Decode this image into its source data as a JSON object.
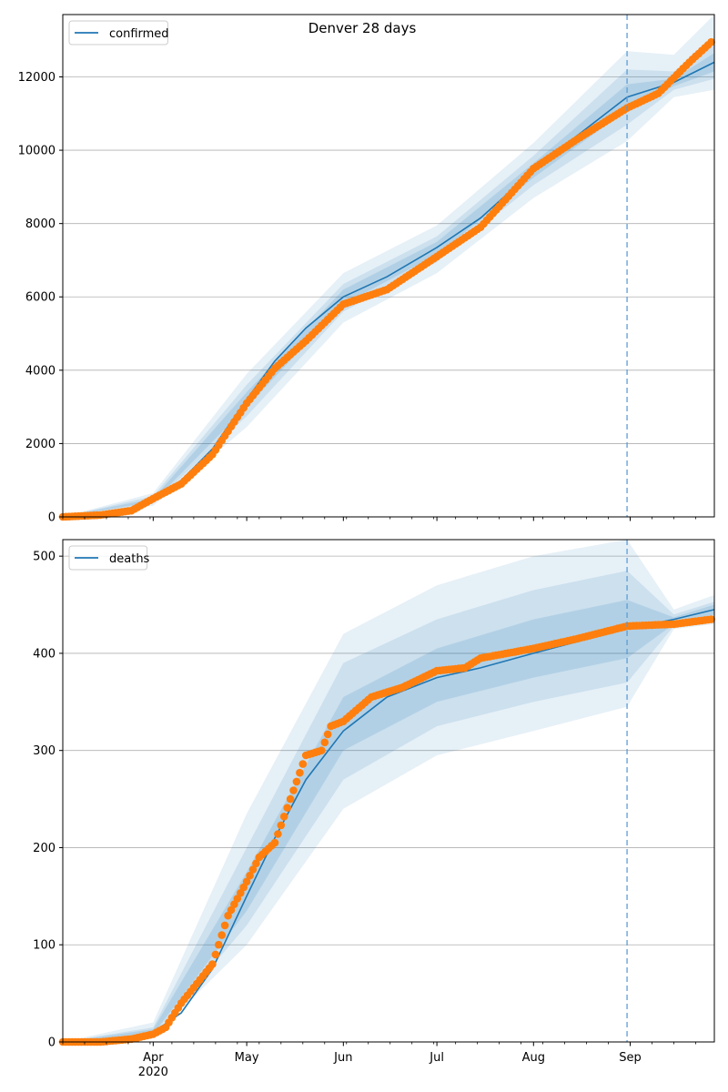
{
  "chart_data": [
    {
      "type": "line",
      "title": "Denver 28 days",
      "x_axis": {
        "start": "2020-03-03",
        "end": "2020-09-28",
        "major_ticks": [
          {
            "date": "2020-04-01",
            "label": "Apr",
            "year": "2020"
          },
          {
            "date": "2020-05-01",
            "label": "May"
          },
          {
            "date": "2020-06-01",
            "label": "Jun"
          },
          {
            "date": "2020-07-01",
            "label": "Jul"
          },
          {
            "date": "2020-08-01",
            "label": "Aug"
          },
          {
            "date": "2020-09-01",
            "label": "Sep"
          }
        ]
      },
      "ylim": [
        0,
        13700
      ],
      "yticks": [
        0,
        2000,
        4000,
        6000,
        8000,
        10000,
        12000
      ],
      "grid": "horizontal",
      "legend": {
        "entries": [
          "confirmed"
        ],
        "placement": "top-left"
      },
      "forecast_start": "2020-08-31",
      "series": [
        {
          "name": "confirmed",
          "role": "model",
          "color": "#1f77b4",
          "points": [
            [
              "2020-03-03",
              0
            ],
            [
              "2020-03-15",
              30
            ],
            [
              "2020-03-25",
              150
            ],
            [
              "2020-04-01",
              450
            ],
            [
              "2020-04-10",
              1000
            ],
            [
              "2020-04-20",
              1850
            ],
            [
              "2020-05-01",
              3200
            ],
            [
              "2020-05-10",
              4250
            ],
            [
              "2020-05-20",
              5150
            ],
            [
              "2020-06-01",
              6000
            ],
            [
              "2020-06-15",
              6550
            ],
            [
              "2020-07-01",
              7350
            ],
            [
              "2020-07-15",
              8150
            ],
            [
              "2020-08-01",
              9450
            ],
            [
              "2020-08-15",
              10400
            ],
            [
              "2020-08-31",
              11450
            ],
            [
              "2020-09-15",
              11850
            ],
            [
              "2020-09-28",
              12400
            ]
          ]
        },
        {
          "name": "confirmed",
          "role": "observed",
          "color": "#ff7f0e",
          "points": [
            [
              "2020-03-03",
              0
            ],
            [
              "2020-03-15",
              50
            ],
            [
              "2020-03-25",
              170
            ],
            [
              "2020-04-01",
              500
            ],
            [
              "2020-04-10",
              900
            ],
            [
              "2020-04-20",
              1700
            ],
            [
              "2020-05-01",
              3100
            ],
            [
              "2020-05-10",
              4050
            ],
            [
              "2020-05-20",
              4800
            ],
            [
              "2020-06-01",
              5800
            ],
            [
              "2020-06-15",
              6200
            ],
            [
              "2020-07-01",
              7100
            ],
            [
              "2020-07-15",
              7900
            ],
            [
              "2020-08-01",
              9500
            ],
            [
              "2020-08-15",
              10300
            ],
            [
              "2020-08-31",
              11150
            ],
            [
              "2020-09-10",
              11550
            ],
            [
              "2020-09-20",
              12400
            ],
            [
              "2020-09-27",
              12950
            ]
          ]
        }
      ],
      "bands": [
        {
          "opacity": 0.11,
          "lower": [
            [
              "2020-03-03",
              0
            ],
            [
              "2020-04-01",
              300
            ],
            [
              "2020-05-01",
              2450
            ],
            [
              "2020-06-01",
              5300
            ],
            [
              "2020-07-01",
              6650
            ],
            [
              "2020-08-01",
              8700
            ],
            [
              "2020-08-31",
              10250
            ],
            [
              "2020-09-15",
              11450
            ],
            [
              "2020-09-28",
              11650
            ]
          ],
          "upper": [
            [
              "2020-03-03",
              0
            ],
            [
              "2020-04-01",
              650
            ],
            [
              "2020-05-01",
              3900
            ],
            [
              "2020-06-01",
              6650
            ],
            [
              "2020-07-01",
              7950
            ],
            [
              "2020-08-01",
              10200
            ],
            [
              "2020-08-31",
              12700
            ],
            [
              "2020-09-15",
              12600
            ],
            [
              "2020-09-28",
              13700
            ]
          ]
        },
        {
          "opacity": 0.13,
          "lower": [
            [
              "2020-03-03",
              0
            ],
            [
              "2020-04-01",
              360
            ],
            [
              "2020-05-01",
              2750
            ],
            [
              "2020-06-01",
              5600
            ],
            [
              "2020-07-01",
              6950
            ],
            [
              "2020-08-01",
              9050
            ],
            [
              "2020-08-31",
              10700
            ],
            [
              "2020-09-15",
              11650
            ],
            [
              "2020-09-28",
              11950
            ]
          ],
          "upper": [
            [
              "2020-03-03",
              0
            ],
            [
              "2020-04-01",
              570
            ],
            [
              "2020-05-01",
              3600
            ],
            [
              "2020-06-01",
              6350
            ],
            [
              "2020-07-01",
              7650
            ],
            [
              "2020-08-01",
              9850
            ],
            [
              "2020-08-31",
              12200
            ],
            [
              "2020-09-15",
              12150
            ],
            [
              "2020-09-28",
              12950
            ]
          ]
        },
        {
          "opacity": 0.15,
          "lower": [
            [
              "2020-03-03",
              0
            ],
            [
              "2020-04-01",
              410
            ],
            [
              "2020-05-01",
              3000
            ],
            [
              "2020-06-01",
              5800
            ],
            [
              "2020-07-01",
              7150
            ],
            [
              "2020-08-01",
              9250
            ],
            [
              "2020-08-31",
              11100
            ],
            [
              "2020-09-15",
              11750
            ],
            [
              "2020-09-28",
              12150
            ]
          ],
          "upper": [
            [
              "2020-03-03",
              0
            ],
            [
              "2020-04-01",
              500
            ],
            [
              "2020-05-01",
              3400
            ],
            [
              "2020-06-01",
              6200
            ],
            [
              "2020-07-01",
              7500
            ],
            [
              "2020-08-01",
              9650
            ],
            [
              "2020-08-31",
              11800
            ],
            [
              "2020-09-15",
              11950
            ],
            [
              "2020-09-28",
              12650
            ]
          ]
        }
      ]
    },
    {
      "type": "line",
      "title": "",
      "x_axis": {
        "start": "2020-03-03",
        "end": "2020-09-28",
        "major_ticks": [
          {
            "date": "2020-04-01",
            "label": "Apr",
            "year": "2020"
          },
          {
            "date": "2020-05-01",
            "label": "May"
          },
          {
            "date": "2020-06-01",
            "label": "Jun"
          },
          {
            "date": "2020-07-01",
            "label": "Jul"
          },
          {
            "date": "2020-08-01",
            "label": "Aug"
          },
          {
            "date": "2020-09-01",
            "label": "Sep"
          }
        ]
      },
      "ylim": [
        0,
        517
      ],
      "yticks": [
        0,
        100,
        200,
        300,
        400,
        500
      ],
      "grid": "horizontal",
      "legend": {
        "entries": [
          "deaths"
        ],
        "placement": "top-left"
      },
      "forecast_start": "2020-08-31",
      "series": [
        {
          "name": "deaths",
          "role": "model",
          "color": "#1f77b4",
          "points": [
            [
              "2020-03-03",
              0
            ],
            [
              "2020-03-20",
              1
            ],
            [
              "2020-04-01",
              10
            ],
            [
              "2020-04-10",
              30
            ],
            [
              "2020-04-20",
              75
            ],
            [
              "2020-05-01",
              150
            ],
            [
              "2020-05-10",
              210
            ],
            [
              "2020-05-20",
              270
            ],
            [
              "2020-06-01",
              320
            ],
            [
              "2020-06-15",
              355
            ],
            [
              "2020-07-01",
              375
            ],
            [
              "2020-07-15",
              385
            ],
            [
              "2020-08-01",
              400
            ],
            [
              "2020-08-15",
              412
            ],
            [
              "2020-08-31",
              425
            ],
            [
              "2020-09-15",
              435
            ],
            [
              "2020-09-28",
              445
            ]
          ]
        },
        {
          "name": "deaths",
          "role": "observed",
          "color": "#ff7f0e",
          "points": [
            [
              "2020-03-03",
              0
            ],
            [
              "2020-03-15",
              0
            ],
            [
              "2020-03-25",
              3
            ],
            [
              "2020-04-01",
              8
            ],
            [
              "2020-04-05",
              15
            ],
            [
              "2020-04-10",
              40
            ],
            [
              "2020-04-20",
              80
            ],
            [
              "2020-04-25",
              130
            ],
            [
              "2020-05-01",
              165
            ],
            [
              "2020-05-05",
              190
            ],
            [
              "2020-05-10",
              205
            ],
            [
              "2020-05-15",
              250
            ],
            [
              "2020-05-20",
              295
            ],
            [
              "2020-05-25",
              300
            ],
            [
              "2020-05-28",
              325
            ],
            [
              "2020-06-01",
              330
            ],
            [
              "2020-06-10",
              355
            ],
            [
              "2020-06-20",
              365
            ],
            [
              "2020-07-01",
              382
            ],
            [
              "2020-07-10",
              385
            ],
            [
              "2020-07-15",
              395
            ],
            [
              "2020-08-01",
              405
            ],
            [
              "2020-08-15",
              415
            ],
            [
              "2020-08-31",
              428
            ],
            [
              "2020-09-15",
              430
            ],
            [
              "2020-09-27",
              435
            ]
          ]
        }
      ],
      "bands": [
        {
          "opacity": 0.11,
          "lower": [
            [
              "2020-03-03",
              0
            ],
            [
              "2020-04-01",
              5
            ],
            [
              "2020-05-01",
              100
            ],
            [
              "2020-06-01",
              240
            ],
            [
              "2020-07-01",
              295
            ],
            [
              "2020-08-01",
              320
            ],
            [
              "2020-08-31",
              345
            ],
            [
              "2020-09-15",
              425
            ],
            [
              "2020-09-28",
              430
            ]
          ],
          "upper": [
            [
              "2020-03-03",
              0
            ],
            [
              "2020-04-01",
              20
            ],
            [
              "2020-05-01",
              235
            ],
            [
              "2020-06-01",
              420
            ],
            [
              "2020-07-01",
              470
            ],
            [
              "2020-08-01",
              500
            ],
            [
              "2020-08-31",
              517
            ],
            [
              "2020-09-15",
              445
            ],
            [
              "2020-09-28",
              460
            ]
          ]
        },
        {
          "opacity": 0.13,
          "lower": [
            [
              "2020-03-03",
              0
            ],
            [
              "2020-04-01",
              7
            ],
            [
              "2020-05-01",
              120
            ],
            [
              "2020-06-01",
              270
            ],
            [
              "2020-07-01",
              325
            ],
            [
              "2020-08-01",
              350
            ],
            [
              "2020-08-31",
              370
            ],
            [
              "2020-09-15",
              428
            ],
            [
              "2020-09-28",
              435
            ]
          ],
          "upper": [
            [
              "2020-03-03",
              0
            ],
            [
              "2020-04-01",
              15
            ],
            [
              "2020-05-01",
              200
            ],
            [
              "2020-06-01",
              390
            ],
            [
              "2020-07-01",
              435
            ],
            [
              "2020-08-01",
              465
            ],
            [
              "2020-08-31",
              485
            ],
            [
              "2020-09-15",
              440
            ],
            [
              "2020-09-28",
              453
            ]
          ]
        },
        {
          "opacity": 0.15,
          "lower": [
            [
              "2020-03-03",
              0
            ],
            [
              "2020-04-01",
              8
            ],
            [
              "2020-05-01",
              135
            ],
            [
              "2020-06-01",
              300
            ],
            [
              "2020-07-01",
              350
            ],
            [
              "2020-08-01",
              375
            ],
            [
              "2020-08-31",
              395
            ],
            [
              "2020-09-15",
              430
            ],
            [
              "2020-09-28",
              440
            ]
          ],
          "upper": [
            [
              "2020-03-03",
              0
            ],
            [
              "2020-04-01",
              13
            ],
            [
              "2020-05-01",
              175
            ],
            [
              "2020-06-01",
              355
            ],
            [
              "2020-07-01",
              405
            ],
            [
              "2020-08-01",
              435
            ],
            [
              "2020-08-31",
              455
            ],
            [
              "2020-09-15",
              437
            ],
            [
              "2020-09-28",
              450
            ]
          ]
        }
      ]
    }
  ]
}
